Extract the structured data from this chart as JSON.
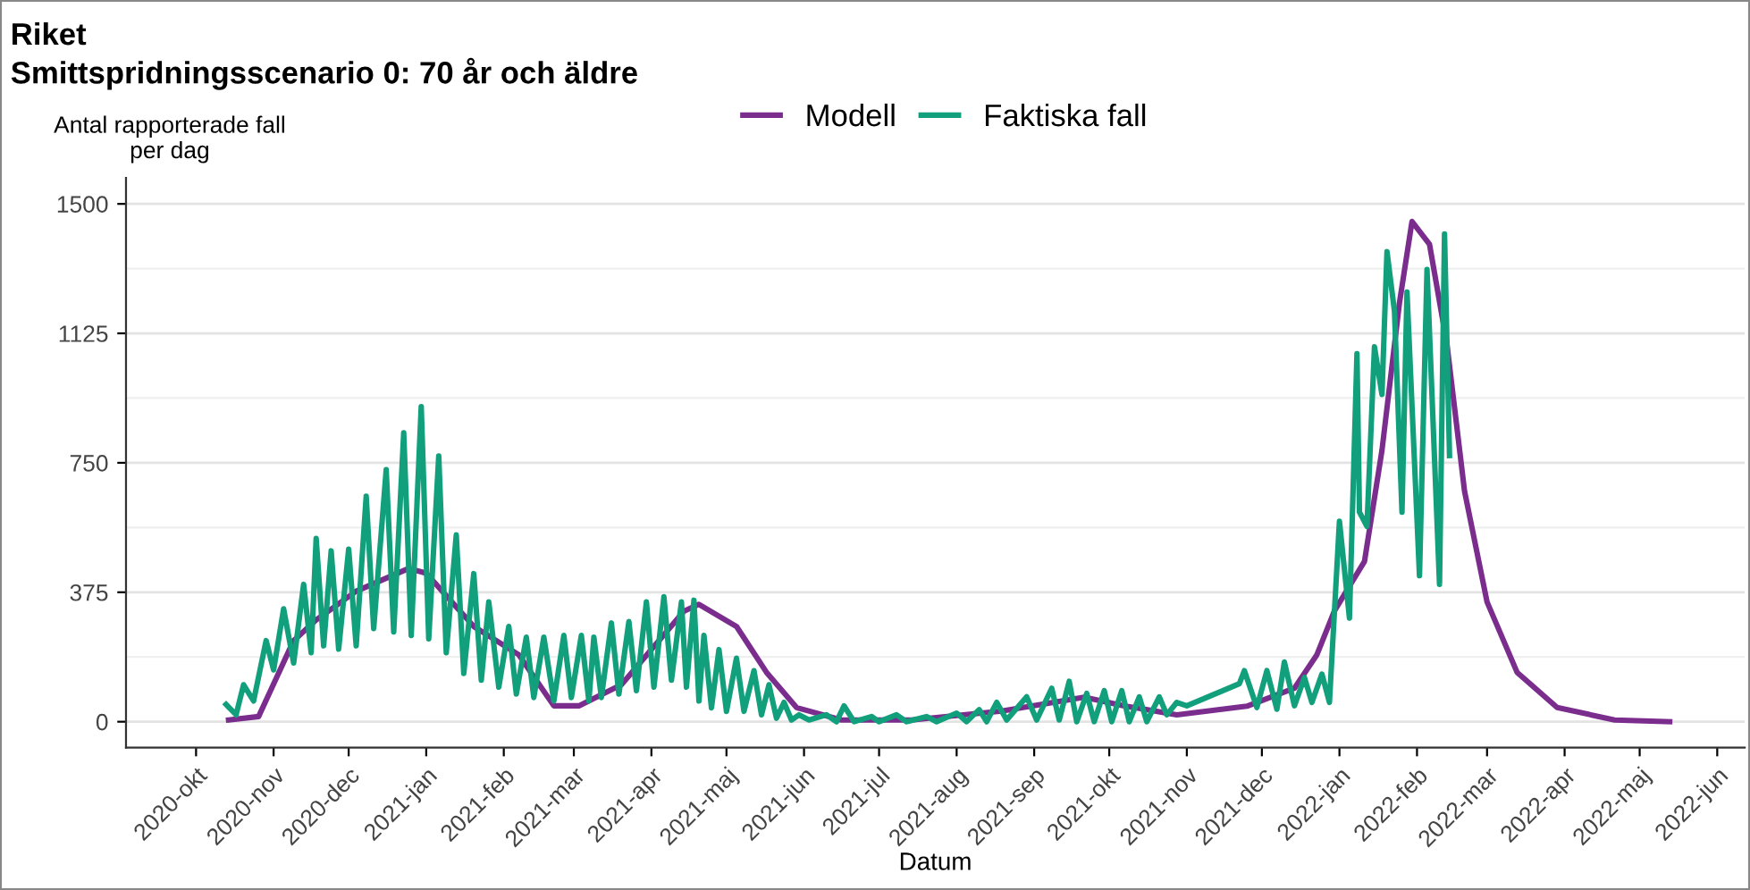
{
  "chart_data": {
    "type": "line",
    "title": "Riket",
    "subtitle": "Smittspridningsscenario 0: 70 år och äldre",
    "xlabel": "Datum",
    "ylabel": "Antal rapporterade fall\nper dag",
    "xlim": [
      "2020-09-03",
      "2022-06-12"
    ],
    "ylim": [
      -75,
      1575
    ],
    "yticks": [
      0,
      375,
      750,
      1125,
      1500
    ],
    "xticks": [
      {
        "value": "2020-10-01",
        "label": "2020-okt"
      },
      {
        "value": "2020-11-01",
        "label": "2020-nov"
      },
      {
        "value": "2020-12-01",
        "label": "2020-dec"
      },
      {
        "value": "2021-01-01",
        "label": "2021-jan"
      },
      {
        "value": "2021-02-01",
        "label": "2021-feb"
      },
      {
        "value": "2021-03-01",
        "label": "2021-mar"
      },
      {
        "value": "2021-04-01",
        "label": "2021-apr"
      },
      {
        "value": "2021-05-01",
        "label": "2021-maj"
      },
      {
        "value": "2021-06-01",
        "label": "2021-jun"
      },
      {
        "value": "2021-07-01",
        "label": "2021-jul"
      },
      {
        "value": "2021-08-01",
        "label": "2021-aug"
      },
      {
        "value": "2021-09-01",
        "label": "2021-sep"
      },
      {
        "value": "2021-10-01",
        "label": "2021-okt"
      },
      {
        "value": "2021-11-01",
        "label": "2021-nov"
      },
      {
        "value": "2021-12-01",
        "label": "2021-dec"
      },
      {
        "value": "2022-01-01",
        "label": "2022-jan"
      },
      {
        "value": "2022-02-01",
        "label": "2022-feb"
      },
      {
        "value": "2022-03-01",
        "label": "2022-mar"
      },
      {
        "value": "2022-04-01",
        "label": "2022-apr"
      },
      {
        "value": "2022-05-01",
        "label": "2022-maj"
      },
      {
        "value": "2022-06-01",
        "label": "2022-jun"
      }
    ],
    "grid": "y",
    "legend": "top",
    "line_style": "solid",
    "marker": "none",
    "series": [
      {
        "name": "Modell",
        "color": "#7b2d8e",
        "x": [
          "2020-10-14",
          "2020-10-26",
          "2020-11-09",
          "2020-11-18",
          "2020-12-04",
          "2020-12-25",
          "2021-01-01",
          "2021-01-20",
          "2021-02-07",
          "2021-02-21",
          "2021-03-03",
          "2021-03-20",
          "2021-04-14",
          "2021-04-20",
          "2021-05-05",
          "2021-05-17",
          "2021-05-29",
          "2021-06-16",
          "2021-07-14",
          "2021-08-19",
          "2021-09-21",
          "2021-10-07",
          "2021-10-28",
          "2021-11-25",
          "2021-12-14",
          "2021-12-23",
          "2021-12-30",
          "2022-01-11",
          "2022-01-18",
          "2022-01-25",
          "2022-01-30",
          "2022-02-06",
          "2022-02-13",
          "2022-02-20",
          "2022-03-01",
          "2022-03-13",
          "2022-03-29",
          "2022-04-21",
          "2022-05-13"
        ],
        "values": [
          5,
          15,
          235,
          295,
          378,
          444,
          430,
          276,
          194,
          46,
          46,
          107,
          320,
          340,
          276,
          143,
          41,
          5,
          5,
          31,
          71,
          46,
          20,
          45,
          97,
          194,
          321,
          464,
          786,
          1214,
          1449,
          1383,
          1092,
          668,
          347,
          143,
          41,
          5,
          0
        ]
      },
      {
        "name": "Faktiska fall",
        "color": "#12a07c",
        "x": [
          "2020-10-13",
          "2020-10-17",
          "2020-10-20",
          "2020-10-24",
          "2020-10-29",
          "2020-11-01",
          "2020-11-05",
          "2020-11-09",
          "2020-11-13",
          "2020-11-16",
          "2020-11-18",
          "2020-11-21",
          "2020-11-24",
          "2020-11-27",
          "2020-12-01",
          "2020-12-04",
          "2020-12-08",
          "2020-12-11",
          "2020-12-16",
          "2020-12-19",
          "2020-12-23",
          "2020-12-26",
          "2020-12-30",
          "2021-01-02",
          "2021-01-06",
          "2021-01-09",
          "2021-01-13",
          "2021-01-16",
          "2021-01-20",
          "2021-01-23",
          "2021-01-26",
          "2021-01-30",
          "2021-02-03",
          "2021-02-06",
          "2021-02-10",
          "2021-02-13",
          "2021-02-17",
          "2021-02-21",
          "2021-02-25",
          "2021-02-28",
          "2021-03-04",
          "2021-03-07",
          "2021-03-09",
          "2021-03-12",
          "2021-03-16",
          "2021-03-19",
          "2021-03-23",
          "2021-03-26",
          "2021-03-30",
          "2021-04-02",
          "2021-04-06",
          "2021-04-09",
          "2021-04-13",
          "2021-04-15",
          "2021-04-18",
          "2021-04-20",
          "2021-04-22",
          "2021-04-25",
          "2021-04-28",
          "2021-05-01",
          "2021-05-05",
          "2021-05-08",
          "2021-05-12",
          "2021-05-15",
          "2021-05-18",
          "2021-05-21",
          "2021-05-24",
          "2021-05-27",
          "2021-05-30",
          "2021-06-03",
          "2021-06-10",
          "2021-06-14",
          "2021-06-17",
          "2021-06-21",
          "2021-06-28",
          "2021-07-01",
          "2021-07-08",
          "2021-07-12",
          "2021-07-20",
          "2021-07-24",
          "2021-08-01",
          "2021-08-05",
          "2021-08-10",
          "2021-08-13",
          "2021-08-17",
          "2021-08-21",
          "2021-08-29",
          "2021-09-02",
          "2021-09-08",
          "2021-09-11",
          "2021-09-15",
          "2021-09-18",
          "2021-09-22",
          "2021-09-25",
          "2021-09-29",
          "2021-10-02",
          "2021-10-06",
          "2021-10-09",
          "2021-10-13",
          "2021-10-16",
          "2021-10-21",
          "2021-10-24",
          "2021-10-28",
          "2021-11-01",
          "2021-11-22",
          "2021-11-24",
          "2021-11-29",
          "2021-12-03",
          "2021-12-07",
          "2021-12-10",
          "2021-12-14",
          "2021-12-18",
          "2021-12-21",
          "2021-12-25",
          "2021-12-28",
          "2022-01-01",
          "2022-01-05",
          "2022-01-08",
          "2022-01-09",
          "2022-01-12",
          "2022-01-15",
          "2022-01-18",
          "2022-01-20",
          "2022-01-23",
          "2022-01-26",
          "2022-01-28",
          "2022-02-02",
          "2022-02-05",
          "2022-02-10",
          "2022-02-12",
          "2022-02-14"
        ],
        "values": [
          50,
          20,
          107,
          60,
          235,
          150,
          327,
          170,
          398,
          200,
          531,
          220,
          495,
          210,
          500,
          220,
          653,
          270,
          730,
          260,
          837,
          250,
          913,
          240,
          770,
          200,
          541,
          140,
          429,
          120,
          347,
          100,
          276,
          80,
          245,
          70,
          245,
          60,
          250,
          70,
          250,
          60,
          245,
          70,
          286,
          80,
          290,
          90,
          347,
          100,
          362,
          120,
          347,
          100,
          352,
          60,
          250,
          40,
          209,
          30,
          184,
          30,
          148,
          20,
          107,
          10,
          56,
          5,
          20,
          5,
          20,
          0,
          46,
          0,
          15,
          0,
          20,
          0,
          15,
          0,
          25,
          0,
          35,
          0,
          56,
          5,
          72,
          5,
          97,
          5,
          117,
          0,
          82,
          0,
          90,
          0,
          90,
          0,
          72,
          0,
          72,
          20,
          56,
          46,
          110,
          148,
          41,
          148,
          36,
          173,
          46,
          128,
          56,
          138,
          56,
          581,
          300,
          1066,
          607,
          566,
          1086,
          948,
          1362,
          1189,
          607,
          1245,
          423,
          1310,
          398,
          1413,
          771
        ]
      }
    ]
  }
}
